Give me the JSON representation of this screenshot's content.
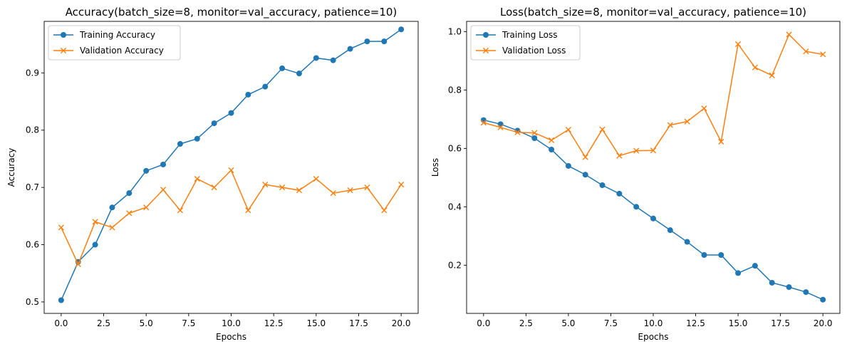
{
  "chart_data": [
    {
      "type": "line",
      "title": "Accuracy(batch_size=8, monitor=val_accuracy, patience=10)",
      "xlabel": "Epochs",
      "ylabel": "Accuracy",
      "xlim": [
        -1.0,
        21.0
      ],
      "ylim": [
        0.48,
        0.99
      ],
      "xticks": [
        0.0,
        2.5,
        5.0,
        7.5,
        10.0,
        12.5,
        15.0,
        17.5,
        20.0
      ],
      "xtick_labels": [
        "0.0",
        "2.5",
        "5.0",
        "7.5",
        "10.0",
        "12.5",
        "15.0",
        "17.5",
        "20.0"
      ],
      "yticks": [
        0.5,
        0.6,
        0.7,
        0.8,
        0.9
      ],
      "ytick_labels": [
        "0.5",
        "0.6",
        "0.7",
        "0.8",
        "0.9"
      ],
      "grid": false,
      "legend": "top-left",
      "x": [
        0,
        1,
        2,
        3,
        4,
        5,
        6,
        7,
        8,
        9,
        10,
        11,
        12,
        13,
        14,
        15,
        16,
        17,
        18,
        19,
        20
      ],
      "series": [
        {
          "name": "Training Accuracy",
          "color": "#1f77b4",
          "marker": "circle",
          "values": [
            0.503,
            0.57,
            0.6,
            0.665,
            0.69,
            0.729,
            0.74,
            0.776,
            0.785,
            0.812,
            0.83,
            0.862,
            0.876,
            0.908,
            0.899,
            0.926,
            0.922,
            0.942,
            0.955,
            0.955,
            0.976
          ]
        },
        {
          "name": "Validation Accuracy",
          "color": "#ff7f0e",
          "marker": "x",
          "values": [
            0.63,
            0.566,
            0.64,
            0.63,
            0.655,
            0.665,
            0.696,
            0.66,
            0.715,
            0.7,
            0.73,
            0.66,
            0.705,
            0.7,
            0.695,
            0.715,
            0.69,
            0.695,
            0.7,
            0.66,
            0.705
          ]
        }
      ]
    },
    {
      "type": "line",
      "title": "Loss(batch_size=8, monitor=val_accuracy, patience=10)",
      "xlabel": "Epochs",
      "ylabel": "Loss",
      "xlim": [
        -1.0,
        21.0
      ],
      "ylim": [
        0.035,
        1.035
      ],
      "xticks": [
        0.0,
        2.5,
        5.0,
        7.5,
        10.0,
        12.5,
        15.0,
        17.5,
        20.0
      ],
      "xtick_labels": [
        "0.0",
        "2.5",
        "5.0",
        "7.5",
        "10.0",
        "12.5",
        "15.0",
        "17.5",
        "20.0"
      ],
      "yticks": [
        0.2,
        0.4,
        0.6,
        0.8,
        1.0
      ],
      "ytick_labels": [
        "0.2",
        "0.4",
        "0.6",
        "0.8",
        "1.0"
      ],
      "grid": false,
      "legend": "top-left",
      "x": [
        0,
        1,
        2,
        3,
        4,
        5,
        6,
        7,
        8,
        9,
        10,
        11,
        12,
        13,
        14,
        15,
        16,
        17,
        18,
        19,
        20
      ],
      "series": [
        {
          "name": "Training Loss",
          "color": "#1f77b4",
          "marker": "circle",
          "values": [
            0.697,
            0.683,
            0.661,
            0.635,
            0.596,
            0.54,
            0.51,
            0.474,
            0.445,
            0.4,
            0.36,
            0.32,
            0.28,
            0.235,
            0.235,
            0.173,
            0.198,
            0.14,
            0.125,
            0.108,
            0.082
          ]
        },
        {
          "name": "Validation Loss",
          "color": "#ff7f0e",
          "marker": "x",
          "values": [
            0.688,
            0.672,
            0.655,
            0.653,
            0.628,
            0.664,
            0.57,
            0.665,
            0.575,
            0.592,
            0.593,
            0.68,
            0.692,
            0.737,
            0.623,
            0.957,
            0.877,
            0.85,
            0.99,
            0.932,
            0.922
          ]
        }
      ]
    }
  ]
}
